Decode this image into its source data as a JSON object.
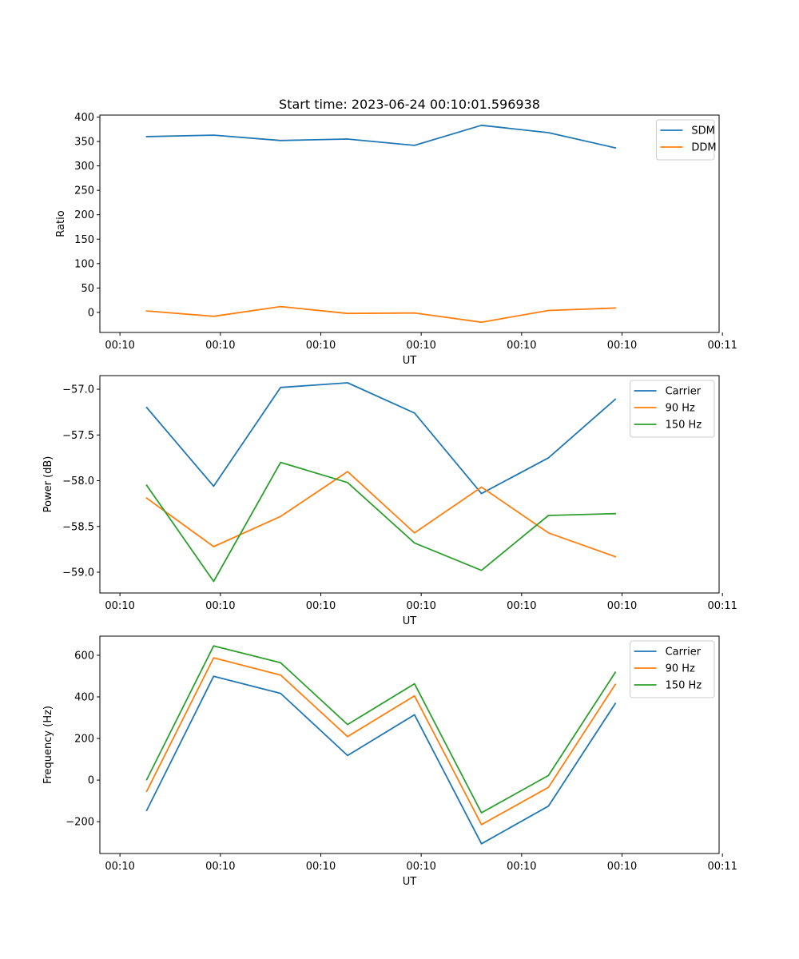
{
  "figure_title": "Start time: 2023-06-24 00:10:01.596938",
  "chart_data": [
    {
      "type": "line",
      "title": "Start time: 2023-06-24 00:10:01.596938",
      "xlabel": "UT",
      "ylabel": "Ratio",
      "x": [
        "00:10:04.0",
        "00:10:08.0",
        "00:10:12.0",
        "00:10:16.0",
        "00:10:20.0",
        "00:10:24.0",
        "00:10:28.0",
        "00:10:32.0"
      ],
      "xlim": [
        "00:10:01.2",
        "00:10:38.2"
      ],
      "xticks": [
        "00:10",
        "00:10",
        "00:10",
        "00:10",
        "00:10",
        "00:10",
        "00:11"
      ],
      "ylim": [
        -41,
        404
      ],
      "yticks": [
        0,
        50,
        100,
        150,
        200,
        250,
        300,
        350,
        400
      ],
      "legend_position": "top-right",
      "series": [
        {
          "name": "SDM",
          "color": "#1f77b4",
          "values": [
            360,
            363,
            352,
            355,
            342,
            383,
            368,
            337
          ]
        },
        {
          "name": "DDM",
          "color": "#ff7f0e",
          "values": [
            3,
            -8,
            12,
            -2,
            -1,
            -20,
            4,
            9
          ]
        }
      ]
    },
    {
      "type": "line",
      "xlabel": "UT",
      "ylabel": "Power (dB)",
      "x": [
        "00:10:04.0",
        "00:10:08.0",
        "00:10:12.0",
        "00:10:16.0",
        "00:10:20.0",
        "00:10:24.0",
        "00:10:28.0",
        "00:10:32.0"
      ],
      "xlim": [
        "00:10:01.2",
        "00:10:38.2"
      ],
      "xticks": [
        "00:10",
        "00:10",
        "00:10",
        "00:10",
        "00:10",
        "00:10",
        "00:11"
      ],
      "ylim": [
        -59.227,
        -56.851
      ],
      "yticks": [
        -57.0,
        -57.5,
        -58.0,
        -58.5,
        -59.0
      ],
      "ytick_labels": [
        "−57.0",
        "−57.5",
        "−58.0",
        "−58.5",
        "−59.0"
      ],
      "legend_position": "top-right",
      "series": [
        {
          "name": "Carrier",
          "color": "#1f77b4",
          "values": [
            -57.2,
            -58.06,
            -56.98,
            -56.93,
            -57.26,
            -58.14,
            -57.75,
            -57.11
          ]
        },
        {
          "name": "90 Hz",
          "color": "#ff7f0e",
          "values": [
            -58.19,
            -58.72,
            -58.39,
            -57.9,
            -58.57,
            -58.07,
            -58.57,
            -58.83
          ]
        },
        {
          "name": "150 Hz",
          "color": "#2ca02c",
          "values": [
            -58.05,
            -59.1,
            -57.8,
            -58.02,
            -58.68,
            -58.98,
            -58.38,
            -58.36
          ]
        }
      ]
    },
    {
      "type": "line",
      "xlabel": "UT",
      "ylabel": "Frequency (Hz)",
      "x": [
        "00:10:04.0",
        "00:10:08.0",
        "00:10:12.0",
        "00:10:16.0",
        "00:10:20.0",
        "00:10:24.0",
        "00:10:28.0",
        "00:10:32.0"
      ],
      "xlim": [
        "00:10:01.2",
        "00:10:38.2"
      ],
      "xticks": [
        "00:10",
        "00:10",
        "00:10",
        "00:10",
        "00:10",
        "00:10",
        "00:11"
      ],
      "ylim": [
        -353,
        692
      ],
      "yticks": [
        600,
        400,
        200,
        0,
        -200
      ],
      "ytick_labels": [
        "600",
        "400",
        "200",
        "0",
        "−200"
      ],
      "legend_position": "top-right",
      "series": [
        {
          "name": "Carrier",
          "color": "#1f77b4",
          "values": [
            -146,
            499,
            417,
            118,
            314,
            -306,
            -125,
            368
          ]
        },
        {
          "name": "90 Hz",
          "color": "#ff7f0e",
          "values": [
            -54,
            588,
            505,
            209,
            405,
            -214,
            -35,
            460
          ]
        },
        {
          "name": "150 Hz",
          "color": "#2ca02c",
          "values": [
            2,
            645,
            564,
            267,
            463,
            -157,
            22,
            518
          ]
        }
      ]
    }
  ]
}
